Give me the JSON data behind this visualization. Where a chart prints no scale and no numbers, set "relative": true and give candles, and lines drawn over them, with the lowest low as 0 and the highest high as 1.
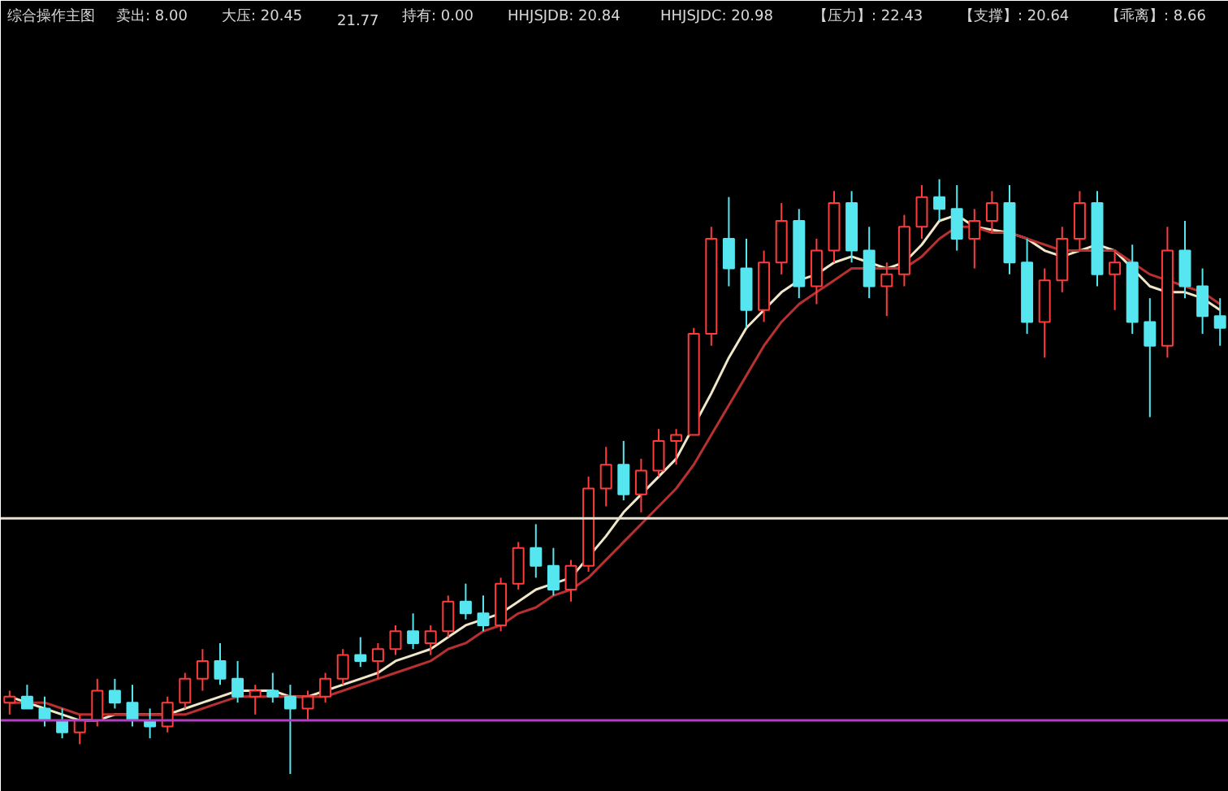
{
  "chart_data": {
    "type": "candlestick",
    "relative": true,
    "legend": false,
    "annotations": [
      "综合操作主图",
      "卖出: 8.00",
      "大压: 20.45",
      "21.77",
      "持有: 0.00",
      "HHJSJDB: 20.84",
      "HHJSJDC: 20.98",
      "【压力】: 22.43",
      "【支撑】: 20.64",
      "【乖离】: 8.66"
    ],
    "categories": [
      null,
      null,
      null,
      null,
      null,
      null,
      null,
      null,
      null,
      null,
      null,
      null,
      null,
      null,
      null,
      null,
      null,
      null,
      null,
      null,
      null,
      null,
      null,
      null,
      null,
      null,
      null,
      null,
      null,
      null,
      null,
      null,
      null,
      null,
      null,
      null,
      null,
      null,
      null,
      null,
      null,
      null,
      null,
      null,
      null,
      null,
      null,
      null,
      null,
      null,
      null,
      null,
      null,
      null,
      null,
      null,
      null,
      null,
      null,
      null,
      null,
      null,
      null,
      null,
      null,
      null,
      null,
      null,
      null,
      null
    ],
    "colors": [
      "#ff3b3b",
      "#55e6f0",
      "#55e6f0",
      "#55e6f0",
      "#ff3b3b",
      "#ff3b3b",
      "#55e6f0",
      "#55e6f0",
      "#55e6f0",
      "#ff3b3b",
      "#ff3b3b",
      "#ff3b3b",
      "#55e6f0",
      "#55e6f0",
      "#ff3b3b",
      "#55e6f0",
      "#55e6f0",
      "#ff3b3b",
      "#ff3b3b",
      "#ff3b3b",
      "#55e6f0",
      "#ff3b3b",
      "#ff3b3b",
      "#55e6f0",
      "#ff3b3b",
      "#ff3b3b",
      "#55e6f0",
      "#55e6f0",
      "#ff3b3b",
      "#ff3b3b",
      "#55e6f0",
      "#55e6f0",
      "#ff3b3b",
      "#ff3b3b",
      "#ff3b3b",
      "#55e6f0",
      "#ff3b3b",
      "#ff3b3b",
      "#ff3b3b",
      "#ff3b3b",
      "#ff3b3b",
      "#55e6f0",
      "#55e6f0",
      "#ff3b3b",
      "#ff3b3b",
      "#55e6f0",
      "#ff3b3b",
      "#ff3b3b",
      "#55e6f0",
      "#55e6f0",
      "#ff3b3b",
      "#ff3b3b",
      "#ff3b3b",
      "#55e6f0",
      "#55e6f0",
      "#ff3b3b",
      "#ff3b3b",
      "#55e6f0",
      "#55e6f0",
      "#ff3b3b",
      "#ff3b3b",
      "#ff3b3b",
      "#55e6f0",
      "#ff3b3b",
      "#55e6f0",
      "#55e6f0",
      "#ff3b3b",
      "#55e6f0",
      "#55e6f0",
      "#55e6f0"
    ],
    "ohlc": [
      [
        0.12,
        0.14,
        0.1,
        0.13
      ],
      [
        0.13,
        0.15,
        0.11,
        0.11
      ],
      [
        0.11,
        0.13,
        0.08,
        0.09
      ],
      [
        0.09,
        0.11,
        0.06,
        0.07
      ],
      [
        0.07,
        0.1,
        0.05,
        0.09
      ],
      [
        0.09,
        0.16,
        0.08,
        0.14
      ],
      [
        0.14,
        0.16,
        0.11,
        0.12
      ],
      [
        0.12,
        0.15,
        0.08,
        0.09
      ],
      [
        0.09,
        0.11,
        0.06,
        0.08
      ],
      [
        0.08,
        0.13,
        0.07,
        0.12
      ],
      [
        0.12,
        0.17,
        0.11,
        0.16
      ],
      [
        0.16,
        0.21,
        0.14,
        0.19
      ],
      [
        0.19,
        0.22,
        0.15,
        0.16
      ],
      [
        0.16,
        0.19,
        0.12,
        0.13
      ],
      [
        0.13,
        0.15,
        0.1,
        0.14
      ],
      [
        0.14,
        0.17,
        0.12,
        0.13
      ],
      [
        0.13,
        0.15,
        0.0,
        0.11
      ],
      [
        0.11,
        0.14,
        0.09,
        0.13
      ],
      [
        0.13,
        0.17,
        0.12,
        0.16
      ],
      [
        0.16,
        0.21,
        0.15,
        0.2
      ],
      [
        0.2,
        0.23,
        0.18,
        0.19
      ],
      [
        0.19,
        0.22,
        0.16,
        0.21
      ],
      [
        0.21,
        0.25,
        0.2,
        0.24
      ],
      [
        0.24,
        0.27,
        0.21,
        0.22
      ],
      [
        0.22,
        0.25,
        0.2,
        0.24
      ],
      [
        0.24,
        0.3,
        0.23,
        0.29
      ],
      [
        0.29,
        0.32,
        0.26,
        0.27
      ],
      [
        0.27,
        0.3,
        0.24,
        0.25
      ],
      [
        0.25,
        0.33,
        0.24,
        0.32
      ],
      [
        0.32,
        0.39,
        0.31,
        0.38
      ],
      [
        0.38,
        0.42,
        0.33,
        0.35
      ],
      [
        0.35,
        0.38,
        0.3,
        0.31
      ],
      [
        0.31,
        0.36,
        0.29,
        0.35
      ],
      [
        0.35,
        0.5,
        0.34,
        0.48
      ],
      [
        0.48,
        0.55,
        0.45,
        0.52
      ],
      [
        0.52,
        0.56,
        0.46,
        0.47
      ],
      [
        0.47,
        0.53,
        0.44,
        0.51
      ],
      [
        0.51,
        0.58,
        0.5,
        0.56
      ],
      [
        0.56,
        0.58,
        0.52,
        0.57
      ],
      [
        0.57,
        0.75,
        0.57,
        0.74
      ],
      [
        0.74,
        0.92,
        0.72,
        0.9
      ],
      [
        0.9,
        0.97,
        0.82,
        0.85
      ],
      [
        0.85,
        0.9,
        0.75,
        0.78
      ],
      [
        0.78,
        0.88,
        0.76,
        0.86
      ],
      [
        0.86,
        0.96,
        0.84,
        0.93
      ],
      [
        0.93,
        0.95,
        0.8,
        0.82
      ],
      [
        0.82,
        0.9,
        0.79,
        0.88
      ],
      [
        0.88,
        0.98,
        0.86,
        0.96
      ],
      [
        0.96,
        0.98,
        0.86,
        0.88
      ],
      [
        0.88,
        0.92,
        0.8,
        0.82
      ],
      [
        0.82,
        0.86,
        0.77,
        0.84
      ],
      [
        0.84,
        0.94,
        0.82,
        0.92
      ],
      [
        0.92,
        0.99,
        0.9,
        0.97
      ],
      [
        0.97,
        1.0,
        0.93,
        0.95
      ],
      [
        0.95,
        0.99,
        0.88,
        0.9
      ],
      [
        0.9,
        0.95,
        0.85,
        0.93
      ],
      [
        0.93,
        0.98,
        0.91,
        0.96
      ],
      [
        0.96,
        0.99,
        0.84,
        0.86
      ],
      [
        0.86,
        0.9,
        0.74,
        0.76
      ],
      [
        0.76,
        0.85,
        0.7,
        0.83
      ],
      [
        0.83,
        0.92,
        0.81,
        0.9
      ],
      [
        0.9,
        0.98,
        0.88,
        0.96
      ],
      [
        0.96,
        0.98,
        0.82,
        0.84
      ],
      [
        0.84,
        0.88,
        0.78,
        0.86
      ],
      [
        0.86,
        0.89,
        0.74,
        0.76
      ],
      [
        0.76,
        0.8,
        0.6,
        0.72
      ],
      [
        0.72,
        0.92,
        0.7,
        0.88
      ],
      [
        0.88,
        0.93,
        0.8,
        0.82
      ],
      [
        0.82,
        0.85,
        0.74,
        0.77
      ],
      [
        0.77,
        0.8,
        0.72,
        0.75
      ]
    ],
    "series": [
      {
        "type": "line",
        "color": "#f0e6c8",
        "values": [
          0.13,
          0.12,
          0.11,
          0.1,
          0.09,
          0.09,
          0.1,
          0.1,
          0.1,
          0.1,
          0.11,
          0.12,
          0.13,
          0.14,
          0.14,
          0.14,
          0.13,
          0.13,
          0.14,
          0.15,
          0.16,
          0.17,
          0.19,
          0.2,
          0.21,
          0.23,
          0.25,
          0.26,
          0.27,
          0.29,
          0.31,
          0.32,
          0.33,
          null,
          0.4,
          0.44,
          0.47,
          0.5,
          0.53,
          null,
          0.64,
          0.7,
          0.75,
          0.78,
          0.81,
          0.83,
          0.84,
          0.86,
          0.87,
          0.86,
          0.85,
          0.86,
          0.89,
          0.93,
          0.94,
          0.92,
          null,
          0.91,
          0.9,
          0.88,
          0.87,
          0.88,
          0.89,
          0.88,
          0.85,
          0.82,
          0.81,
          0.81,
          0.8,
          0.78
        ]
      },
      {
        "type": "line",
        "color": "#b83030",
        "values": [
          0.12,
          0.12,
          0.12,
          0.11,
          0.1,
          0.1,
          0.1,
          0.1,
          0.1,
          0.1,
          0.1,
          0.11,
          0.12,
          0.13,
          0.13,
          0.13,
          0.13,
          0.13,
          0.13,
          0.14,
          0.15,
          0.16,
          0.17,
          0.18,
          0.19,
          0.21,
          0.22,
          0.24,
          0.25,
          0.27,
          0.28,
          0.3,
          0.31,
          0.33,
          0.36,
          0.39,
          0.42,
          0.45,
          0.48,
          0.52,
          0.57,
          0.62,
          0.67,
          0.72,
          0.76,
          0.79,
          0.81,
          0.83,
          0.85,
          0.85,
          0.85,
          0.85,
          0.87,
          0.9,
          0.92,
          0.92,
          0.91,
          0.91,
          0.9,
          0.89,
          0.88,
          0.88,
          0.88,
          0.88,
          0.86,
          0.84,
          0.83,
          0.82,
          0.81,
          0.79
        ]
      }
    ],
    "ref_lines": [
      {
        "axis": "y",
        "value": 0.43,
        "color": "#e8e0d0"
      },
      {
        "axis": "y",
        "value": 0.09,
        "color": "#b040c0"
      }
    ]
  }
}
